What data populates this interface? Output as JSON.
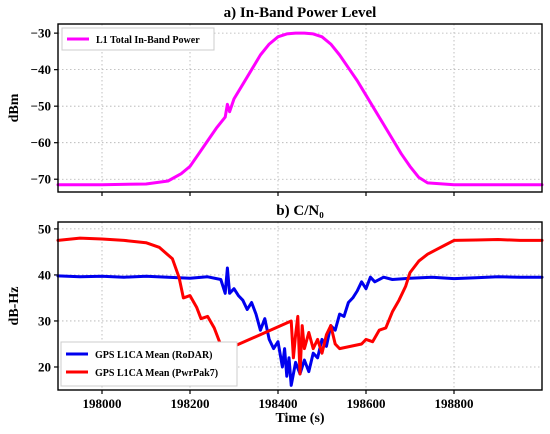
{
  "colors": {
    "magenta": "#ff00ff",
    "blue": "#0000ee",
    "red": "#ff0000"
  },
  "chart_data": [
    {
      "type": "line",
      "title": "a) In-Band Power Level",
      "xlabel": "",
      "ylabel": "dBm",
      "xlim": [
        197900,
        199000
      ],
      "ylim": [
        -73.5,
        -27.5
      ],
      "xticks": [],
      "yticks": [
        -70,
        -60,
        -50,
        -40,
        -30
      ],
      "ytick_labels": [
        "−70",
        "−60",
        "−50",
        "−40",
        "−30"
      ],
      "grid": true,
      "legend_position": "top-left",
      "series": [
        {
          "name": "L1 Total In-Band Power",
          "color": "#ff00ff",
          "x": [
            197900,
            198000,
            198100,
            198150,
            198180,
            198200,
            198220,
            198240,
            198260,
            198280,
            198285,
            198290,
            198300,
            198320,
            198340,
            198360,
            198380,
            198400,
            198420,
            198440,
            198460,
            198480,
            198500,
            198520,
            198540,
            198560,
            198580,
            198600,
            198620,
            198640,
            198660,
            198680,
            198700,
            198720,
            198740,
            198800,
            198900,
            199000
          ],
          "y": [
            -71.5,
            -71.5,
            -71.3,
            -70.5,
            -68.5,
            -66.5,
            -63,
            -59.5,
            -56,
            -53,
            -49.5,
            -51.5,
            -48,
            -44,
            -40,
            -36,
            -33,
            -31,
            -30.2,
            -30,
            -30,
            -30.2,
            -31,
            -33,
            -36,
            -39.5,
            -43,
            -47,
            -51,
            -55,
            -59,
            -63,
            -66.5,
            -69.5,
            -71,
            -71.5,
            -71.5,
            -71.5
          ]
        }
      ]
    },
    {
      "type": "line",
      "title": "b)  C/N₀",
      "xlabel": "Time (s)",
      "ylabel": "dB-Hz",
      "xlim": [
        197900,
        199000
      ],
      "ylim": [
        15,
        51.5
      ],
      "xticks": [
        198000,
        198200,
        198400,
        198600,
        198800
      ],
      "yticks": [
        20,
        30,
        40,
        50
      ],
      "ytick_labels": [
        "20",
        "30",
        "40",
        "50"
      ],
      "grid": true,
      "legend_position": "bottom-left",
      "series": [
        {
          "name": "GPS L1CA Mean (RoDAR)",
          "color": "#0000ee",
          "x": [
            197900,
            197950,
            198000,
            198050,
            198100,
            198150,
            198200,
            198240,
            198270,
            198280,
            198285,
            198290,
            198300,
            198310,
            198320,
            198330,
            198340,
            198350,
            198360,
            198370,
            198380,
            198390,
            198400,
            198410,
            198415,
            198420,
            198425,
            198430,
            198440,
            198450,
            198460,
            198470,
            198480,
            198490,
            198500,
            198510,
            198520,
            198530,
            198540,
            198550,
            198560,
            198570,
            198580,
            198590,
            198600,
            198610,
            198620,
            198640,
            198660,
            198700,
            198750,
            198800,
            198850,
            198900,
            198950,
            199000
          ],
          "y": [
            39.8,
            39.6,
            39.7,
            39.5,
            39.7,
            39.5,
            39.3,
            39.6,
            39,
            36,
            41.5,
            36,
            37,
            35.5,
            34.5,
            32.5,
            34,
            31.5,
            28,
            30.5,
            26,
            24,
            25.5,
            20,
            24,
            18,
            22,
            16,
            21,
            18.5,
            21.5,
            19,
            23,
            22,
            26,
            24.5,
            29,
            28,
            31.5,
            31,
            34,
            35,
            36.5,
            38.5,
            37,
            39.5,
            38.5,
            39.5,
            39,
            39.3,
            39.5,
            39.2,
            39.4,
            39.6,
            39.5,
            39.5
          ]
        },
        {
          "name": "GPS L1CA Mean (PwrPak7)",
          "color": "#ff0000",
          "x": [
            197900,
            197950,
            198000,
            198050,
            198100,
            198130,
            198160,
            198175,
            198185,
            198200,
            198215,
            198225,
            198240,
            198255,
            198265,
            198275,
            198285,
            198300,
            198430,
            198435,
            198440,
            198445,
            198450,
            198455,
            198460,
            198470,
            198480,
            198490,
            198500,
            198510,
            198520,
            198530,
            198540,
            198590,
            198600,
            198615,
            198630,
            198645,
            198660,
            198675,
            198690,
            198700,
            198720,
            198740,
            198760,
            198780,
            198800,
            198850,
            198900,
            198950,
            199000
          ],
          "y": [
            47.5,
            48,
            47.8,
            47.5,
            47,
            46,
            43.5,
            39.5,
            35,
            35.5,
            33,
            30.5,
            31,
            28.5,
            26,
            23.5,
            24,
            24.5,
            30,
            22,
            27,
            31,
            18.5,
            29,
            24,
            27.5,
            24,
            26,
            23,
            27,
            29,
            25,
            24,
            25,
            26,
            25.5,
            28,
            28.5,
            32,
            34.5,
            37.5,
            40.5,
            43,
            44.5,
            45.5,
            46.5,
            47.5,
            47.6,
            47.7,
            47.5,
            47.5
          ]
        }
      ]
    }
  ]
}
